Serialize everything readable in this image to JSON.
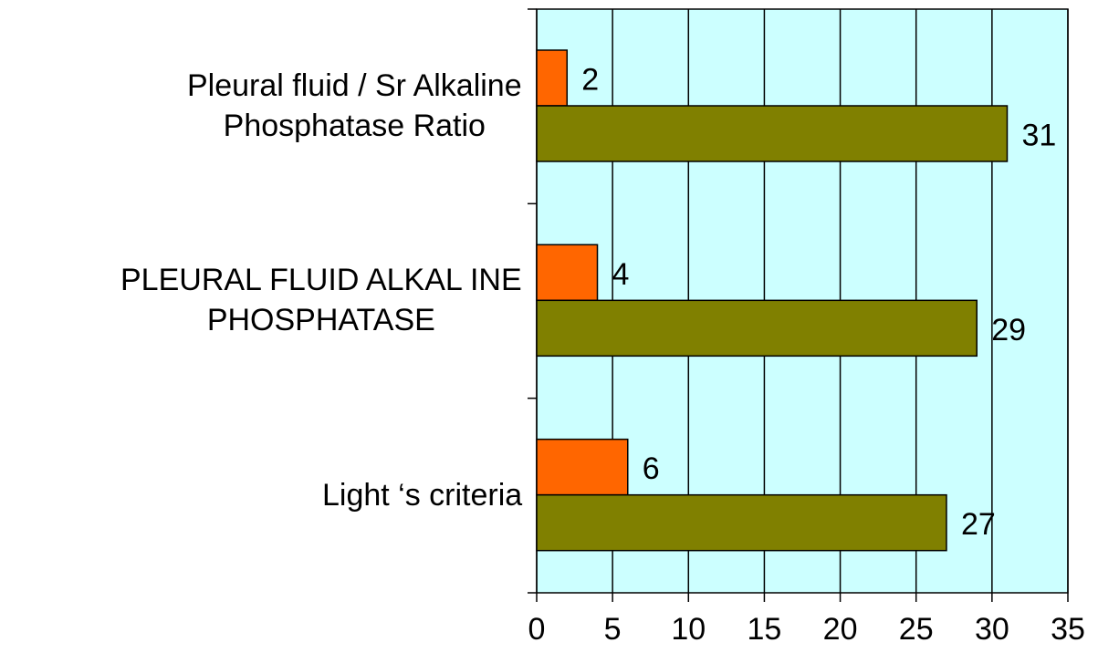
{
  "chart_data": {
    "type": "bar",
    "orientation": "horizontal",
    "categories": [
      "Pleural fluid / Sr Alkaline\nPhosphatase Ratio",
      "PLEURAL FLUID ALKAL INE\nPHOSPHATASE",
      "Light ‘s criteria"
    ],
    "series": [
      {
        "color": "#ff6600",
        "values": [
          2,
          4,
          6
        ]
      },
      {
        "color": "#808000",
        "values": [
          31,
          29,
          27
        ]
      }
    ],
    "xlim": [
      0,
      35
    ],
    "xticks": [
      0,
      5,
      10,
      15,
      20,
      25,
      30,
      35
    ],
    "grid": true,
    "background": "#ccffff"
  }
}
